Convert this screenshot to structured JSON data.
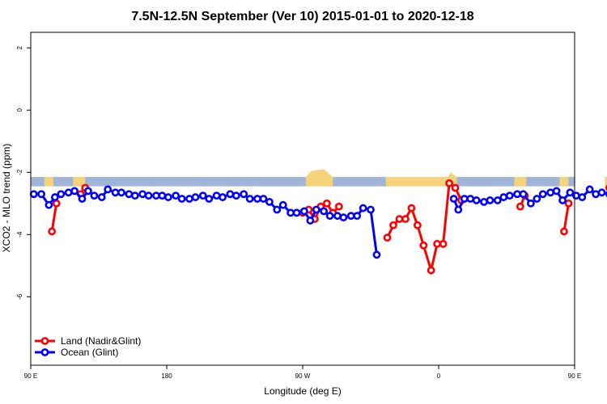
{
  "chart_data": {
    "type": "line",
    "title": "7.5N-12.5N September (Ver 10)   2015-01-01 to 2020-12-18",
    "xlabel": "Longitude (deg E)",
    "ylabel": "XCO2 - MLO trend (ppm)",
    "xlim": [
      90,
      450
    ],
    "ylim": [
      -8.2,
      2.5
    ],
    "x_ticks": [
      {
        "value": 90,
        "label": "90 E"
      },
      {
        "value": 180,
        "label": "180"
      },
      {
        "value": 270,
        "label": "90 W"
      },
      {
        "value": 360,
        "label": "0"
      },
      {
        "value": 450,
        "label": "90 E"
      },
      {
        "value": 540,
        "label": "180"
      }
    ],
    "y_ticks": [
      {
        "value": 2,
        "label": "2"
      },
      {
        "value": 0,
        "label": "0"
      },
      {
        "value": -2,
        "label": "-2"
      },
      {
        "value": -4,
        "label": "-4"
      },
      {
        "value": -6,
        "label": "-6"
      }
    ],
    "grid": false,
    "legend_placement": "bottom-left",
    "land_band_color": "#f5d37a",
    "ocean_band_color": "#9fb4d8",
    "series": [
      {
        "name": "Land (Nadir&Glint)",
        "color": "#ff0000",
        "segments": [
          [
            [
              104,
              -3.9
            ],
            [
              107,
              -3.0
            ]
          ],
          [
            [
              123,
              -2.7
            ],
            [
              126,
              -2.5
            ]
          ],
          [
            [
              270,
              -3.3
            ],
            [
              274,
              -3.2
            ],
            [
              278,
              -3.5
            ],
            [
              282,
              -3.1
            ],
            [
              286,
              -3.0
            ],
            [
              290,
              -3.3
            ],
            [
              294,
              -3.1
            ]
          ],
          [
            [
              326,
              -4.1
            ],
            [
              330,
              -3.7
            ],
            [
              334,
              -3.5
            ],
            [
              338,
              -3.5
            ],
            [
              342,
              -3.15
            ],
            [
              346,
              -3.7
            ],
            [
              350,
              -4.35
            ],
            [
              355,
              -5.15
            ],
            [
              359,
              -4.3
            ],
            [
              363,
              -4.3
            ],
            [
              367,
              -2.35
            ],
            [
              371,
              -2.5
            ],
            [
              375,
              -2.9
            ]
          ],
          [
            [
              414,
              -3.1
            ],
            [
              417,
              -2.75
            ]
          ],
          [
            [
              443,
              -3.9
            ],
            [
              446,
              -3.0
            ]
          ],
          [
            [
              473,
              -2.5
            ]
          ]
        ]
      },
      {
        "name": "Ocean (Glint)",
        "color": "#0000ff",
        "segments": [
          [
            [
              92,
              -2.7
            ],
            [
              97,
              -2.7
            ],
            [
              102,
              -3.05
            ],
            [
              106,
              -2.8
            ],
            [
              110,
              -2.7
            ],
            [
              115,
              -2.65
            ],
            [
              119,
              -2.6
            ],
            [
              124,
              -2.85
            ],
            [
              128,
              -2.6
            ],
            [
              132,
              -2.75
            ],
            [
              137,
              -2.8
            ],
            [
              141,
              -2.55
            ],
            [
              146,
              -2.65
            ],
            [
              150,
              -2.65
            ],
            [
              155,
              -2.7
            ],
            [
              159,
              -2.75
            ],
            [
              164,
              -2.7
            ],
            [
              168,
              -2.75
            ],
            [
              173,
              -2.75
            ],
            [
              177,
              -2.75
            ],
            [
              181,
              -2.8
            ],
            [
              186,
              -2.75
            ],
            [
              190,
              -2.85
            ],
            [
              195,
              -2.85
            ],
            [
              199,
              -2.8
            ],
            [
              204,
              -2.75
            ],
            [
              208,
              -2.85
            ],
            [
              213,
              -2.75
            ],
            [
              217,
              -2.8
            ],
            [
              222,
              -2.7
            ],
            [
              226,
              -2.75
            ],
            [
              231,
              -2.7
            ],
            [
              235,
              -2.85
            ],
            [
              240,
              -2.85
            ],
            [
              244,
              -2.85
            ],
            [
              248,
              -2.95
            ],
            [
              253,
              -3.2
            ],
            [
              257,
              -3.05
            ],
            [
              262,
              -3.3
            ],
            [
              266,
              -3.3
            ],
            [
              271,
              -3.25
            ],
            [
              275,
              -3.55
            ],
            [
              279,
              -3.2
            ],
            [
              284,
              -3.25
            ],
            [
              288,
              -3.4
            ],
            [
              293,
              -3.4
            ],
            [
              297,
              -3.45
            ],
            [
              302,
              -3.4
            ],
            [
              306,
              -3.4
            ],
            [
              310,
              -3.15
            ],
            [
              315,
              -3.2
            ],
            [
              319,
              -4.65
            ]
          ],
          [
            [
              370,
              -2.85
            ],
            [
              373,
              -3.2
            ],
            [
              377,
              -2.85
            ],
            [
              381,
              -2.85
            ],
            [
              385,
              -2.9
            ],
            [
              390,
              -2.95
            ],
            [
              394,
              -2.9
            ],
            [
              399,
              -2.9
            ],
            [
              403,
              -2.8
            ],
            [
              407,
              -2.75
            ],
            [
              412,
              -2.7
            ],
            [
              416,
              -2.7
            ],
            [
              421,
              -3.0
            ],
            [
              425,
              -2.85
            ],
            [
              429,
              -2.7
            ],
            [
              434,
              -2.65
            ],
            [
              438,
              -2.6
            ],
            [
              442,
              -2.9
            ],
            [
              447,
              -2.65
            ],
            [
              451,
              -2.75
            ],
            [
              455,
              -2.8
            ],
            [
              460,
              -2.55
            ],
            [
              464,
              -2.7
            ],
            [
              468,
              -2.65
            ],
            [
              473,
              -2.7
            ],
            [
              477,
              -2.8
            ],
            [
              481,
              -2.7
            ],
            [
              486,
              -2.7
            ]
          ]
        ]
      }
    ]
  }
}
